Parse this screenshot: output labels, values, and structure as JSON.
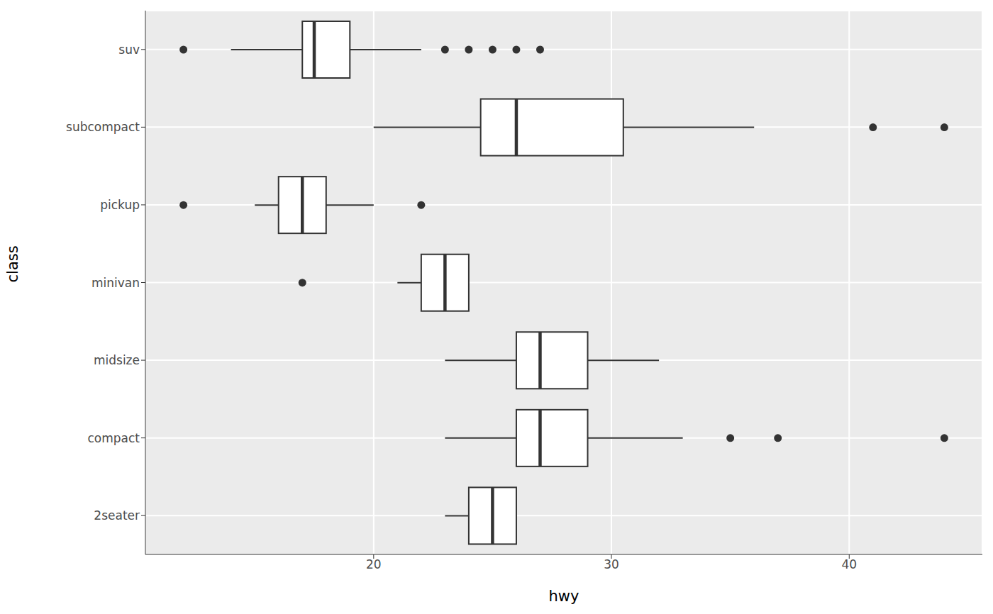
{
  "chart_data": {
    "type": "boxplot",
    "orientation": "horizontal",
    "x_label": "hwy",
    "y_label": "class",
    "xlim": [
      10.4,
      45.6
    ],
    "xticks": [
      20,
      30,
      40
    ],
    "grid": true,
    "color": "#333333",
    "categories": [
      "suv",
      "subcompact",
      "pickup",
      "minivan",
      "midsize",
      "compact",
      "2seater"
    ],
    "boxes": [
      {
        "min": 14,
        "q1": 17,
        "median": 17.5,
        "q3": 19,
        "max": 22,
        "outliers": [
          12,
          23,
          24,
          25,
          26,
          27
        ]
      },
      {
        "min": 20,
        "q1": 24.5,
        "median": 26,
        "q3": 30.5,
        "max": 36,
        "outliers": [
          41,
          44
        ]
      },
      {
        "min": 15,
        "q1": 16,
        "median": 17,
        "q3": 18,
        "max": 20,
        "outliers": [
          12,
          22
        ]
      },
      {
        "min": 21,
        "q1": 22,
        "median": 23,
        "q3": 24,
        "max": 24,
        "outliers": [
          17
        ]
      },
      {
        "min": 23,
        "q1": 26,
        "median": 27,
        "q3": 29,
        "max": 32,
        "outliers": []
      },
      {
        "min": 23,
        "q1": 26,
        "median": 27,
        "q3": 29,
        "max": 33,
        "outliers": [
          35,
          37,
          44
        ]
      },
      {
        "min": 23,
        "q1": 24,
        "median": 25,
        "q3": 26,
        "max": 26,
        "outliers": []
      }
    ]
  }
}
